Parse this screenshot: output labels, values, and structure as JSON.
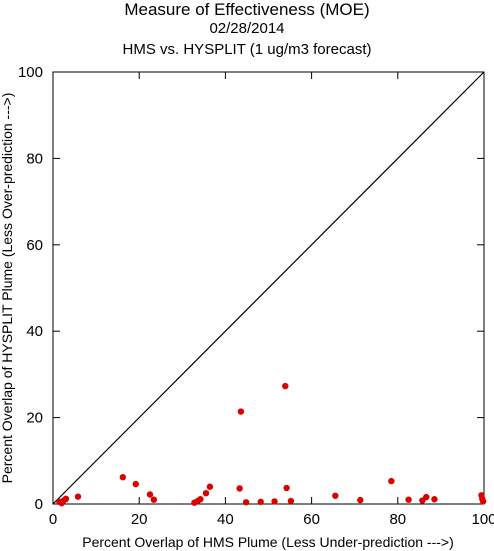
{
  "header": {
    "title": "Measure of Effectiveness (MOE)",
    "date": "02/28/2014",
    "subtitle": "HMS vs. HYSPLIT  (1 ug/m3 forecast)"
  },
  "chart_data": {
    "type": "scatter",
    "title": "Measure of Effectiveness (MOE)",
    "subtitle": "02/28/2014 — HMS vs. HYSPLIT  (1 ug/m3 forecast)",
    "xlabel": "Percent Overlap of HMS Plume (Less Under-prediction --->)",
    "ylabel": "Percent Overlap of HYSPLIT Plume (Less Over-prediction --->)",
    "xlim": [
      0,
      100
    ],
    "ylim": [
      0,
      100
    ],
    "xticks": [
      0,
      20,
      40,
      60,
      80,
      100
    ],
    "yticks": [
      0,
      20,
      40,
      60,
      80,
      100
    ],
    "grid": false,
    "reference_line": {
      "from": [
        0,
        0
      ],
      "to": [
        100,
        100
      ],
      "color": "#000000"
    },
    "marker_color": "#dd0000",
    "points": [
      {
        "x": 1.5,
        "y": 0.5
      },
      {
        "x": 2.0,
        "y": 0.2
      },
      {
        "x": 2.5,
        "y": 0.8
      },
      {
        "x": 3.0,
        "y": 1.2
      },
      {
        "x": 5.8,
        "y": 1.7
      },
      {
        "x": 16.2,
        "y": 6.2
      },
      {
        "x": 19.2,
        "y": 4.6
      },
      {
        "x": 22.5,
        "y": 2.2
      },
      {
        "x": 23.4,
        "y": 1.0
      },
      {
        "x": 32.8,
        "y": 0.3
      },
      {
        "x": 33.6,
        "y": 0.7
      },
      {
        "x": 34.2,
        "y": 1.1
      },
      {
        "x": 35.5,
        "y": 2.5
      },
      {
        "x": 36.4,
        "y": 4.0
      },
      {
        "x": 43.3,
        "y": 3.6
      },
      {
        "x": 43.6,
        "y": 21.4
      },
      {
        "x": 44.8,
        "y": 0.4
      },
      {
        "x": 48.2,
        "y": 0.5
      },
      {
        "x": 51.4,
        "y": 0.6
      },
      {
        "x": 53.9,
        "y": 27.3
      },
      {
        "x": 54.2,
        "y": 3.7
      },
      {
        "x": 55.2,
        "y": 0.7
      },
      {
        "x": 65.5,
        "y": 1.9
      },
      {
        "x": 71.3,
        "y": 0.9
      },
      {
        "x": 78.5,
        "y": 5.3
      },
      {
        "x": 82.5,
        "y": 1.0
      },
      {
        "x": 85.7,
        "y": 0.8
      },
      {
        "x": 86.6,
        "y": 1.6
      },
      {
        "x": 88.5,
        "y": 1.1
      },
      {
        "x": 99.4,
        "y": 2.0
      },
      {
        "x": 99.6,
        "y": 1.2
      },
      {
        "x": 99.8,
        "y": 0.6
      }
    ]
  }
}
